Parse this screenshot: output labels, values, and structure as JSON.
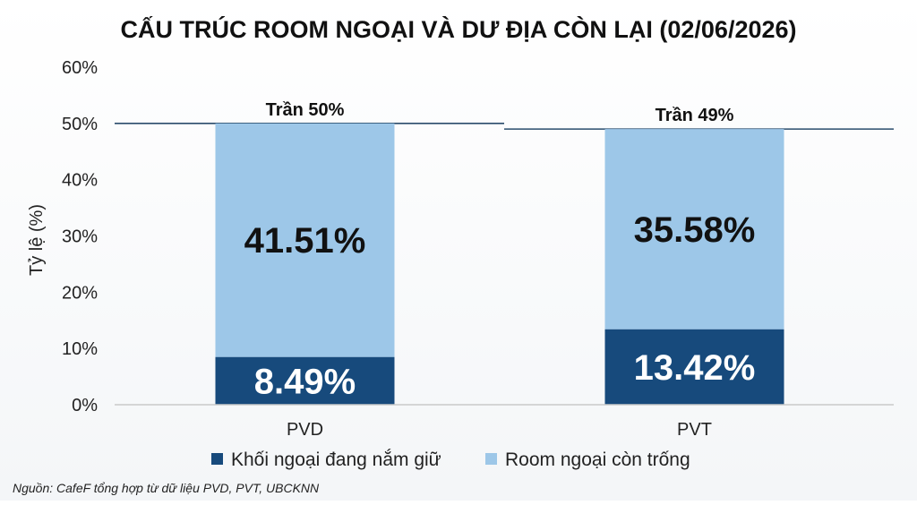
{
  "chart_data": {
    "type": "bar",
    "stacked": true,
    "title": "CẤU TRÚC ROOM NGOẠI VÀ DƯ ĐỊA CÒN LẠI (02/06/2026)",
    "ylabel": "Tỷ lệ (%)",
    "xlabel": "",
    "ylim": [
      0,
      60
    ],
    "yticks": [
      "0%",
      "10%",
      "20%",
      "30%",
      "40%",
      "50%",
      "60%"
    ],
    "grid": false,
    "categories": [
      "PVD",
      "PVT"
    ],
    "series": [
      {
        "name": "Khối ngoại đang nắm giữ",
        "values": [
          8.49,
          13.42
        ],
        "labels": [
          "8.49%",
          "13.42%"
        ],
        "color": "#174a7c"
      },
      {
        "name": "Room ngoại còn trống",
        "values": [
          41.51,
          35.58
        ],
        "labels": [
          "41.51%",
          "35.58%"
        ],
        "color": "#9dc7e8"
      }
    ],
    "caps": [
      {
        "category": "PVD",
        "value": 50,
        "label": "Trần 50%"
      },
      {
        "category": "PVT",
        "value": 49,
        "label": "Trần 49%"
      }
    ],
    "legend_position": "bottom",
    "axis_color": "#c9c9c9",
    "cap_line_color": "#2a4c6b"
  },
  "source": "Nguồn: CafeF tổng hợp từ dữ liệu PVD, PVT, UBCKNN"
}
